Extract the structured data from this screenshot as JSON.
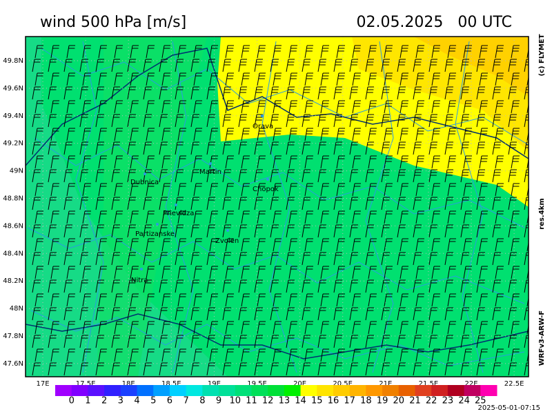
{
  "header": {
    "title": "wind 500 hPa [m/s]",
    "date": "02.05.2025   00 UTC"
  },
  "side_labels": {
    "copyright": "(c) FLYMET",
    "resolution": "res.4km",
    "model": "WRFv3-ARW-F"
  },
  "footer": {
    "timestamp": "2025-05-01-07:15"
  },
  "map": {
    "lat_ticks": [
      {
        "value": 49.8,
        "label": "49.8N"
      },
      {
        "value": 49.6,
        "label": "49.6N"
      },
      {
        "value": 49.4,
        "label": "49.4N"
      },
      {
        "value": 49.2,
        "label": "49.2N"
      },
      {
        "value": 49,
        "label": "49N"
      },
      {
        "value": 48.8,
        "label": "48.8N"
      },
      {
        "value": 48.6,
        "label": "48.6N"
      },
      {
        "value": 48.4,
        "label": "48.4N"
      },
      {
        "value": 48.2,
        "label": "48.2N"
      },
      {
        "value": 48,
        "label": "48N"
      },
      {
        "value": 47.8,
        "label": "47.8N"
      },
      {
        "value": 47.6,
        "label": "47.6N"
      }
    ],
    "lon_ticks": [
      {
        "value": 17,
        "label": "17E"
      },
      {
        "value": 17.5,
        "label": "17.5E"
      },
      {
        "value": 18,
        "label": "18E"
      },
      {
        "value": 18.5,
        "label": "18.5E"
      },
      {
        "value": 19,
        "label": "19E"
      },
      {
        "value": 19.5,
        "label": "19.5E"
      },
      {
        "value": 20,
        "label": "20E"
      },
      {
        "value": 20.5,
        "label": "20.5E"
      },
      {
        "value": 21,
        "label": "21E"
      },
      {
        "value": 21.5,
        "label": "21.5E"
      },
      {
        "value": 22,
        "label": "22E"
      },
      {
        "value": 22.5,
        "label": "22.5E"
      }
    ],
    "cities": [
      "Orava",
      "Martin",
      "Dubnica",
      "Chopok",
      "Prievidza",
      "Partizanske",
      "Zvolen",
      "Nitra"
    ]
  },
  "colorbar": {
    "labels": [
      0,
      1,
      2,
      3,
      4,
      5,
      6,
      7,
      8,
      9,
      10,
      11,
      12,
      13,
      14,
      15,
      16,
      17,
      18,
      19,
      20,
      21,
      22,
      23,
      24,
      25
    ],
    "colors": [
      "#a000ff",
      "#8000ff",
      "#5a10ff",
      "#3020ff",
      "#1a40ff",
      "#0070ff",
      "#00a0ff",
      "#00d0ff",
      "#00e8e0",
      "#00e0b0",
      "#00e098",
      "#00e078",
      "#00e058",
      "#00e038",
      "#00f000",
      "#ffff00",
      "#ffe400",
      "#ffcc00",
      "#ffb400",
      "#ff9800",
      "#f08000",
      "#e86000",
      "#e04020",
      "#d02020",
      "#b00020",
      "#c00060",
      "#ff00b0"
    ]
  }
}
